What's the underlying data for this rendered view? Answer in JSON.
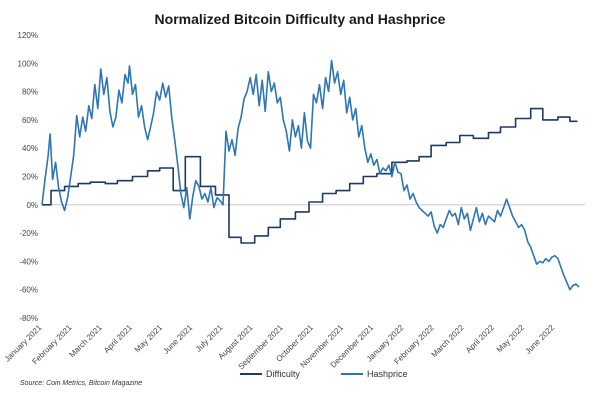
{
  "chart_data": {
    "type": "line",
    "title": "Normalized Bitcoin Difficulty and Hashprice",
    "y_ticks": [
      "120%",
      "100%",
      "80%",
      "60%",
      "40%",
      "20%",
      "0%",
      "-20%",
      "-40%",
      "-60%",
      "-80%"
    ],
    "ylim": [
      -80,
      120
    ],
    "x_ticks": [
      "January 2021",
      "February 2021",
      "March 2021",
      "April 2021",
      "May 2021",
      "June 2021",
      "July 2021",
      "August 2021",
      "September 2021",
      "October 2021",
      "November 2021",
      "December 2021",
      "January 2022",
      "February 2022",
      "March 2022",
      "April 2022",
      "May 2022",
      "June 2022"
    ],
    "x_unit": "months since January 2021",
    "xlim": [
      0,
      18
    ],
    "legend_position": "bottom",
    "grid": false,
    "series": [
      {
        "name": "Difficulty",
        "color": "#1f3864",
        "points": [
          [
            0.0,
            0
          ],
          [
            0.3,
            0
          ],
          [
            0.3,
            10
          ],
          [
            0.75,
            10
          ],
          [
            0.75,
            13
          ],
          [
            1.2,
            13
          ],
          [
            1.2,
            15
          ],
          [
            1.6,
            15
          ],
          [
            1.6,
            16
          ],
          [
            2.1,
            16
          ],
          [
            2.1,
            15
          ],
          [
            2.5,
            15
          ],
          [
            2.5,
            17
          ],
          [
            3.0,
            17
          ],
          [
            3.0,
            20
          ],
          [
            3.5,
            20
          ],
          [
            3.5,
            24
          ],
          [
            3.9,
            24
          ],
          [
            3.9,
            26
          ],
          [
            4.35,
            26
          ],
          [
            4.35,
            10
          ],
          [
            4.75,
            10
          ],
          [
            4.75,
            34
          ],
          [
            5.25,
            34
          ],
          [
            5.25,
            13
          ],
          [
            5.75,
            13
          ],
          [
            5.75,
            7
          ],
          [
            6.2,
            7
          ],
          [
            6.2,
            -23
          ],
          [
            6.6,
            -23
          ],
          [
            6.6,
            -27
          ],
          [
            7.05,
            -27
          ],
          [
            7.05,
            -22
          ],
          [
            7.5,
            -22
          ],
          [
            7.5,
            -16
          ],
          [
            7.9,
            -16
          ],
          [
            7.9,
            -10
          ],
          [
            8.4,
            -10
          ],
          [
            8.4,
            -5
          ],
          [
            8.85,
            -5
          ],
          [
            8.85,
            2
          ],
          [
            9.3,
            2
          ],
          [
            9.3,
            8
          ],
          [
            9.75,
            8
          ],
          [
            9.75,
            10
          ],
          [
            10.2,
            10
          ],
          [
            10.2,
            15
          ],
          [
            10.65,
            15
          ],
          [
            10.65,
            20
          ],
          [
            11.1,
            20
          ],
          [
            11.1,
            22
          ],
          [
            11.6,
            22
          ],
          [
            11.6,
            30
          ],
          [
            12.1,
            30
          ],
          [
            12.1,
            31
          ],
          [
            12.5,
            31
          ],
          [
            12.5,
            34
          ],
          [
            12.9,
            34
          ],
          [
            12.9,
            42
          ],
          [
            13.4,
            42
          ],
          [
            13.4,
            44
          ],
          [
            13.85,
            44
          ],
          [
            13.85,
            49
          ],
          [
            14.3,
            49
          ],
          [
            14.3,
            47
          ],
          [
            14.8,
            47
          ],
          [
            14.8,
            51
          ],
          [
            15.2,
            51
          ],
          [
            15.2,
            55
          ],
          [
            15.7,
            55
          ],
          [
            15.7,
            61
          ],
          [
            16.2,
            61
          ],
          [
            16.2,
            68
          ],
          [
            16.6,
            68
          ],
          [
            16.6,
            60
          ],
          [
            17.1,
            60
          ],
          [
            17.1,
            62
          ],
          [
            17.5,
            62
          ],
          [
            17.5,
            59
          ],
          [
            17.75,
            59
          ]
        ]
      },
      {
        "name": "Hashprice",
        "color": "#2e75b6",
        "points": [
          [
            0.0,
            0
          ],
          [
            0.1,
            18
          ],
          [
            0.2,
            34
          ],
          [
            0.27,
            50
          ],
          [
            0.35,
            18
          ],
          [
            0.45,
            30
          ],
          [
            0.55,
            12
          ],
          [
            0.65,
            2
          ],
          [
            0.75,
            -4
          ],
          [
            0.85,
            5
          ],
          [
            0.95,
            20
          ],
          [
            1.05,
            35
          ],
          [
            1.15,
            63
          ],
          [
            1.25,
            48
          ],
          [
            1.35,
            62
          ],
          [
            1.45,
            52
          ],
          [
            1.55,
            70
          ],
          [
            1.65,
            61
          ],
          [
            1.75,
            85
          ],
          [
            1.85,
            68
          ],
          [
            1.95,
            96
          ],
          [
            2.05,
            78
          ],
          [
            2.15,
            90
          ],
          [
            2.25,
            66
          ],
          [
            2.35,
            55
          ],
          [
            2.45,
            62
          ],
          [
            2.55,
            81
          ],
          [
            2.65,
            72
          ],
          [
            2.75,
            92
          ],
          [
            2.85,
            86
          ],
          [
            2.9,
            98
          ],
          [
            3.0,
            78
          ],
          [
            3.1,
            85
          ],
          [
            3.2,
            62
          ],
          [
            3.3,
            70
          ],
          [
            3.4,
            55
          ],
          [
            3.5,
            46
          ],
          [
            3.6,
            55
          ],
          [
            3.7,
            65
          ],
          [
            3.8,
            80
          ],
          [
            3.9,
            74
          ],
          [
            4.0,
            86
          ],
          [
            4.1,
            76
          ],
          [
            4.2,
            84
          ],
          [
            4.3,
            62
          ],
          [
            4.4,
            46
          ],
          [
            4.5,
            28
          ],
          [
            4.6,
            8
          ],
          [
            4.7,
            -2
          ],
          [
            4.8,
            12
          ],
          [
            4.9,
            -10
          ],
          [
            5.0,
            6
          ],
          [
            5.1,
            17
          ],
          [
            5.2,
            13
          ],
          [
            5.3,
            4
          ],
          [
            5.4,
            8
          ],
          [
            5.5,
            2
          ],
          [
            5.6,
            12
          ],
          [
            5.7,
            -2
          ],
          [
            5.8,
            5
          ],
          [
            5.9,
            3
          ],
          [
            6.0,
            0
          ],
          [
            6.1,
            52
          ],
          [
            6.2,
            38
          ],
          [
            6.3,
            46
          ],
          [
            6.4,
            35
          ],
          [
            6.5,
            54
          ],
          [
            6.6,
            62
          ],
          [
            6.7,
            75
          ],
          [
            6.8,
            80
          ],
          [
            6.9,
            90
          ],
          [
            7.0,
            78
          ],
          [
            7.1,
            92
          ],
          [
            7.2,
            70
          ],
          [
            7.3,
            88
          ],
          [
            7.4,
            66
          ],
          [
            7.5,
            94
          ],
          [
            7.6,
            80
          ],
          [
            7.7,
            86
          ],
          [
            7.8,
            72
          ],
          [
            7.9,
            76
          ],
          [
            8.0,
            60
          ],
          [
            8.1,
            52
          ],
          [
            8.2,
            38
          ],
          [
            8.3,
            60
          ],
          [
            8.4,
            48
          ],
          [
            8.5,
            56
          ],
          [
            8.6,
            40
          ],
          [
            8.7,
            65
          ],
          [
            8.8,
            45
          ],
          [
            8.9,
            40
          ],
          [
            9.0,
            78
          ],
          [
            9.1,
            72
          ],
          [
            9.2,
            85
          ],
          [
            9.3,
            68
          ],
          [
            9.4,
            90
          ],
          [
            9.5,
            80
          ],
          [
            9.6,
            102
          ],
          [
            9.7,
            86
          ],
          [
            9.8,
            94
          ],
          [
            9.9,
            78
          ],
          [
            10.0,
            88
          ],
          [
            10.1,
            65
          ],
          [
            10.2,
            76
          ],
          [
            10.3,
            60
          ],
          [
            10.4,
            68
          ],
          [
            10.5,
            48
          ],
          [
            10.6,
            56
          ],
          [
            10.7,
            40
          ],
          [
            10.8,
            30
          ],
          [
            10.9,
            36
          ],
          [
            11.0,
            28
          ],
          [
            11.1,
            32
          ],
          [
            11.2,
            22
          ],
          [
            11.3,
            26
          ],
          [
            11.4,
            24
          ],
          [
            11.5,
            28
          ],
          [
            11.6,
            20
          ],
          [
            11.7,
            30
          ],
          [
            11.8,
            23
          ],
          [
            11.9,
            22
          ],
          [
            12.0,
            10
          ],
          [
            12.1,
            14
          ],
          [
            12.2,
            4
          ],
          [
            12.3,
            8
          ],
          [
            12.4,
            2
          ],
          [
            12.5,
            -2
          ],
          [
            12.6,
            -4
          ],
          [
            12.7,
            -6
          ],
          [
            12.8,
            -8
          ],
          [
            12.9,
            -5
          ],
          [
            13.0,
            -15
          ],
          [
            13.1,
            -20
          ],
          [
            13.2,
            -14
          ],
          [
            13.3,
            -16
          ],
          [
            13.4,
            -10
          ],
          [
            13.5,
            -4
          ],
          [
            13.6,
            -8
          ],
          [
            13.7,
            -6
          ],
          [
            13.8,
            -14
          ],
          [
            13.9,
            -2
          ],
          [
            14.0,
            -10
          ],
          [
            14.1,
            -6
          ],
          [
            14.2,
            -18
          ],
          [
            14.3,
            -10
          ],
          [
            14.4,
            -2
          ],
          [
            14.5,
            -12
          ],
          [
            14.6,
            -6
          ],
          [
            14.7,
            -14
          ],
          [
            14.8,
            -8
          ],
          [
            14.9,
            -10
          ],
          [
            15.0,
            -12
          ],
          [
            15.1,
            -4
          ],
          [
            15.2,
            -8
          ],
          [
            15.3,
            -2
          ],
          [
            15.4,
            4
          ],
          [
            15.5,
            -2
          ],
          [
            15.6,
            -8
          ],
          [
            15.7,
            -12
          ],
          [
            15.8,
            -16
          ],
          [
            15.9,
            -14
          ],
          [
            16.0,
            -18
          ],
          [
            16.1,
            -26
          ],
          [
            16.2,
            -30
          ],
          [
            16.3,
            -36
          ],
          [
            16.4,
            -42
          ],
          [
            16.5,
            -40
          ],
          [
            16.6,
            -41
          ],
          [
            16.7,
            -38
          ],
          [
            16.8,
            -40
          ],
          [
            16.9,
            -37
          ],
          [
            17.0,
            -36
          ],
          [
            17.1,
            -38
          ],
          [
            17.2,
            -44
          ],
          [
            17.3,
            -50
          ],
          [
            17.4,
            -55
          ],
          [
            17.5,
            -60
          ],
          [
            17.6,
            -57
          ],
          [
            17.7,
            -56
          ],
          [
            17.8,
            -58
          ]
        ]
      }
    ]
  },
  "source": "Source: Coin Metrics, Bitcoin Magazine"
}
